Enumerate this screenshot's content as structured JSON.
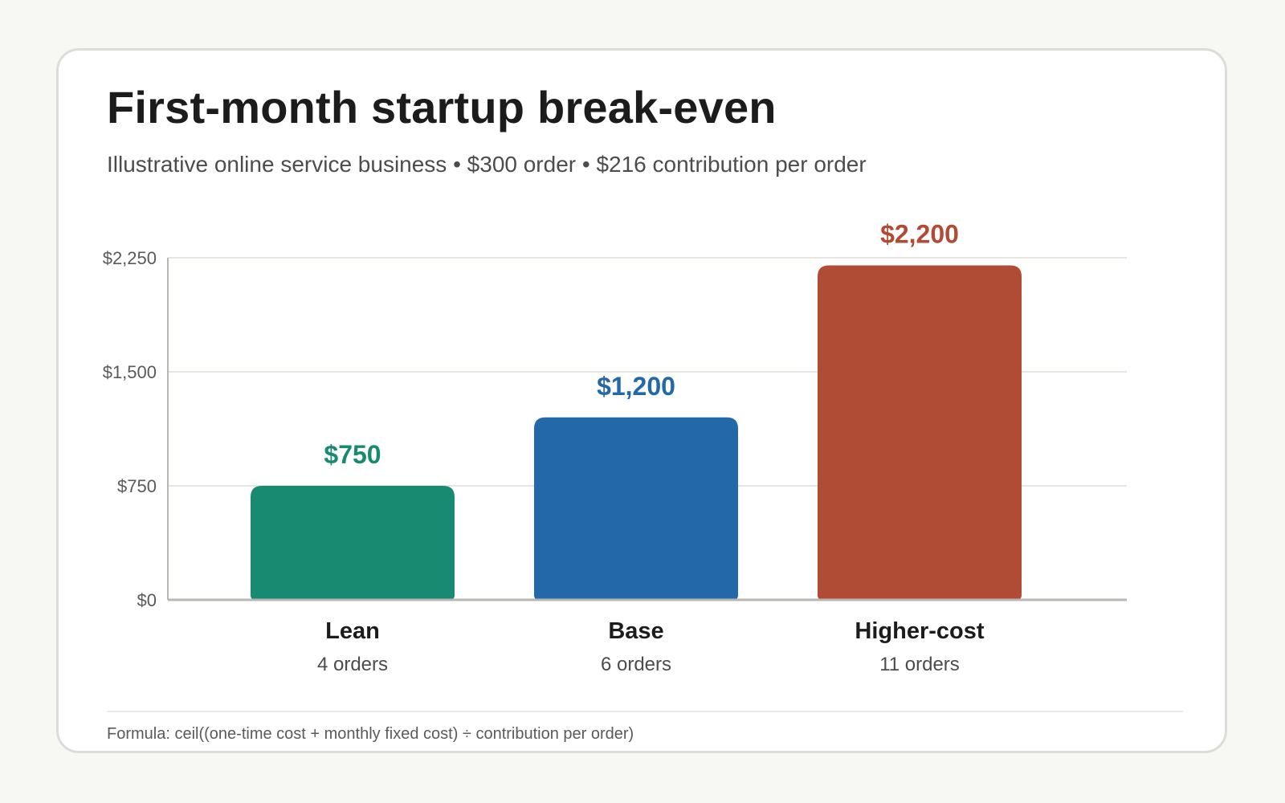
{
  "header": {
    "title": "First-month startup break-even",
    "subtitle": "Illustrative online service business • $300 order • $216 contribution per order"
  },
  "footer": {
    "formula": "Formula: ceil((one-time cost + monthly fixed cost) ÷ contribution per order)"
  },
  "chart_data": {
    "type": "bar",
    "title": "",
    "xlabel": "",
    "ylabel": "",
    "ylim": [
      0,
      2250
    ],
    "yticks": [
      0,
      750,
      1500,
      2250
    ],
    "ytick_labels": [
      "$0",
      "$750",
      "$1,500",
      "$2,250"
    ],
    "grid": true,
    "categories": [
      "Lean",
      "Base",
      "Higher-cost"
    ],
    "values": [
      750,
      1200,
      2200
    ],
    "value_labels": [
      "$750",
      "$1,200",
      "$2,200"
    ],
    "sublabels": [
      "4 orders",
      "6 orders",
      "11 orders"
    ],
    "colors": [
      "#188a72",
      "#2368a8",
      "#b04b35"
    ]
  }
}
